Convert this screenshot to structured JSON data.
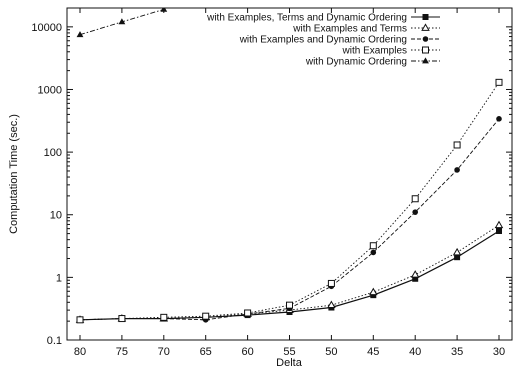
{
  "chart_data": {
    "type": "line",
    "title": "",
    "xlabel": "Delta",
    "ylabel": "Computation Time (sec.)",
    "yscale": "log",
    "ylim": [
      0.1,
      20000
    ],
    "x_ticks": [
      80,
      75,
      70,
      65,
      60,
      55,
      50,
      45,
      40,
      35,
      30
    ],
    "x_tick_labels": [
      "80",
      "75",
      "70",
      "65",
      "60",
      "55",
      "50",
      "45",
      "40",
      "35",
      "30"
    ],
    "y_ticks": [
      0.1,
      1,
      10,
      100,
      1000,
      10000
    ],
    "y_tick_labels": [
      "0.1",
      "1",
      "10",
      "100",
      "1000",
      "10000"
    ],
    "grid": false,
    "legend_position": "top-right",
    "series": [
      {
        "name": "with Examples, Terms and Dynamic Ordering",
        "marker": "filled-square",
        "dash": "solid",
        "x": [
          80,
          75,
          70,
          65,
          60,
          55,
          50,
          45,
          40,
          35,
          30
        ],
        "y": [
          0.21,
          0.22,
          0.22,
          0.23,
          0.25,
          0.28,
          0.33,
          0.52,
          0.95,
          2.1,
          5.5
        ]
      },
      {
        "name": "with Examples and Terms",
        "marker": "triangle",
        "dash": "dotted",
        "x": [
          80,
          75,
          70,
          65,
          60,
          55,
          50,
          45,
          40,
          35,
          30
        ],
        "y": [
          0.21,
          0.22,
          0.22,
          0.23,
          0.26,
          0.3,
          0.36,
          0.58,
          1.1,
          2.5,
          6.8
        ]
      },
      {
        "name": "with Examples and Dynamic Ordering",
        "marker": "filled-circle",
        "dash": "dashed",
        "x": [
          80,
          75,
          70,
          65,
          60,
          55,
          50,
          45,
          40,
          35,
          30
        ],
        "y": [
          0.21,
          0.22,
          0.22,
          0.21,
          0.26,
          0.32,
          0.72,
          2.5,
          11,
          52,
          340
        ]
      },
      {
        "name": "with Examples",
        "marker": "open-square",
        "dash": "dotted",
        "x": [
          80,
          75,
          70,
          65,
          60,
          55,
          50,
          45,
          40,
          35,
          30
        ],
        "y": [
          0.21,
          0.22,
          0.23,
          0.24,
          0.27,
          0.36,
          0.8,
          3.2,
          18,
          130,
          1300
        ]
      },
      {
        "name": "with Dynamic Ordering",
        "marker": "filled-triangle",
        "dash": "dash-dot",
        "x": [
          80,
          75,
          70
        ],
        "y": [
          7500,
          12000,
          19000
        ]
      }
    ]
  }
}
